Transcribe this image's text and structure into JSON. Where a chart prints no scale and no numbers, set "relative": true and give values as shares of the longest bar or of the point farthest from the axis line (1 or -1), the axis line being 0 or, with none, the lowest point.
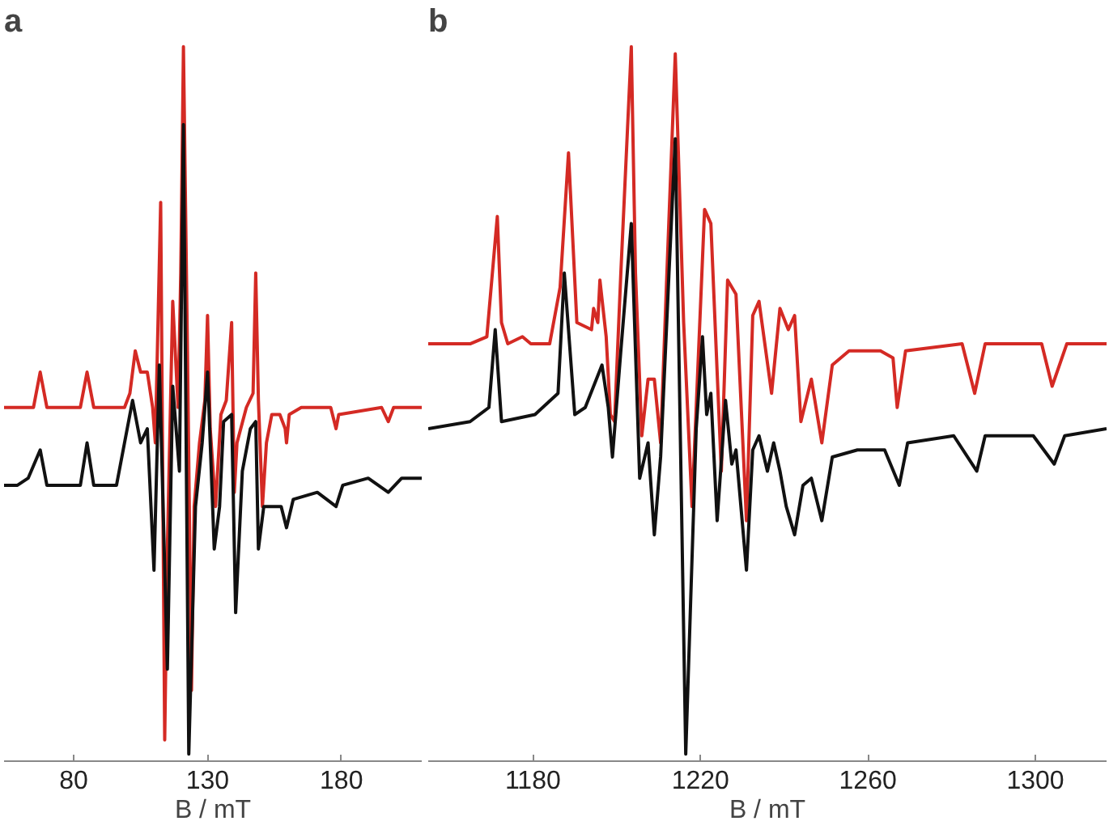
{
  "chart_data": [
    {
      "type": "line",
      "title": "a",
      "xlabel": "B / mT",
      "relative": true,
      "xlim": [
        54,
        210
      ],
      "xticks": [
        80,
        130,
        180
      ],
      "grid": false,
      "series": [
        {
          "color": "#d42a24",
          "x": [
            54,
            65,
            67.5,
            70,
            82.5,
            85,
            87.5,
            99,
            101,
            103,
            105,
            107.5,
            109.5,
            110.5,
            112.5,
            114,
            115,
            117,
            119,
            120,
            121,
            122.5,
            124,
            125,
            127,
            129,
            130,
            131,
            133,
            135,
            137,
            139,
            140,
            141,
            144.5,
            147,
            148,
            149,
            150.5,
            152,
            154,
            157,
            159,
            159.5,
            160.5,
            165,
            176,
            178,
            179,
            195,
            197.5,
            199.5,
            210
          ],
          "values": [
            0.49,
            0.49,
            0.54,
            0.49,
            0.49,
            0.54,
            0.49,
            0.49,
            0.51,
            0.57,
            0.54,
            0.54,
            0.49,
            0.44,
            0.78,
            0.02,
            0.29,
            0.64,
            0.49,
            0.68,
            1.0,
            0.57,
            0.09,
            0.35,
            0.44,
            0.5,
            0.62,
            0.46,
            0.35,
            0.48,
            0.5,
            0.61,
            0.37,
            0.44,
            0.49,
            0.51,
            0.68,
            0.5,
            0.35,
            0.44,
            0.48,
            0.48,
            0.46,
            0.44,
            0.48,
            0.49,
            0.49,
            0.46,
            0.48,
            0.49,
            0.47,
            0.49,
            0.49
          ]
        },
        {
          "color": "#111111",
          "x": [
            54,
            59,
            63,
            67.5,
            70,
            77.5,
            82.5,
            85,
            87.5,
            96,
            102,
            105,
            107.5,
            110,
            112,
            115,
            117,
            119.5,
            121,
            123,
            125.5,
            128,
            130,
            132.5,
            134.5,
            136,
            139,
            140.5,
            143,
            146,
            148,
            149,
            151,
            154,
            157.5,
            159.5,
            162,
            171,
            178,
            180.5,
            190,
            197.5,
            202.5,
            210
          ],
          "values": [
            0.38,
            0.38,
            0.39,
            0.43,
            0.38,
            0.38,
            0.38,
            0.44,
            0.38,
            0.38,
            0.5,
            0.44,
            0.46,
            0.26,
            0.55,
            0.12,
            0.52,
            0.4,
            0.89,
            0,
            0.35,
            0.44,
            0.54,
            0.29,
            0.35,
            0.47,
            0.48,
            0.2,
            0.4,
            0.46,
            0.47,
            0.29,
            0.35,
            0.35,
            0.35,
            0.32,
            0.36,
            0.37,
            0.35,
            0.38,
            0.39,
            0.37,
            0.39,
            0.39
          ]
        }
      ]
    },
    {
      "type": "line",
      "title": "b",
      "xlabel": "B / mT",
      "relative": true,
      "xlim": [
        1155,
        1317
      ],
      "xticks": [
        1180,
        1220,
        1260,
        1300
      ],
      "grid": false,
      "series": [
        {
          "color": "#d42a24",
          "x": [
            1155,
            1165,
            1169,
            1171.5,
            1172.5,
            1174,
            1177.5,
            1179.5,
            1184,
            1186.5,
            1188.5,
            1190.5,
            1194,
            1194.5,
            1195.5,
            1196,
            1197.5,
            1198.5,
            1199.5,
            1201,
            1203.5,
            1204.5,
            1206,
            1207.5,
            1209,
            1210.5,
            1212,
            1214,
            1216,
            1218,
            1221,
            1222.5,
            1225,
            1226.5,
            1228.5,
            1231,
            1232.5,
            1234,
            1237,
            1239,
            1241,
            1242.5,
            1244,
            1246.5,
            1249,
            1251.5,
            1255.5,
            1263,
            1266,
            1267,
            1269,
            1282.5,
            1285.5,
            1288,
            1301.5,
            1304,
            1307.5,
            1317
          ],
          "values": [
            0.58,
            0.58,
            0.59,
            0.76,
            0.61,
            0.58,
            0.59,
            0.58,
            0.58,
            0.66,
            0.85,
            0.61,
            0.6,
            0.63,
            0.61,
            0.67,
            0.59,
            0.48,
            0.47,
            0.68,
            1.0,
            0.68,
            0.45,
            0.53,
            0.53,
            0.44,
            0.68,
            0.99,
            0.61,
            0.35,
            0.77,
            0.75,
            0.4,
            0.67,
            0.65,
            0.33,
            0.62,
            0.64,
            0.51,
            0.63,
            0.6,
            0.62,
            0.47,
            0.53,
            0.44,
            0.55,
            0.57,
            0.57,
            0.56,
            0.49,
            0.57,
            0.58,
            0.51,
            0.58,
            0.58,
            0.52,
            0.58,
            0.58
          ]
        },
        {
          "color": "#111111",
          "x": [
            1155,
            1165,
            1169.5,
            1171,
            1172.5,
            1180.5,
            1186,
            1187.5,
            1190,
            1192.5,
            1196.5,
            1198,
            1199,
            1201,
            1203.5,
            1205.5,
            1207.5,
            1209,
            1210.5,
            1212.5,
            1214,
            1216.5,
            1219,
            1220.5,
            1221.5,
            1222.5,
            1224,
            1226,
            1227.5,
            1228.5,
            1231,
            1232.5,
            1234,
            1236,
            1237.5,
            1239,
            1240.5,
            1242.5,
            1244.5,
            1246.5,
            1249,
            1251.5,
            1257.5,
            1264,
            1267.5,
            1269.5,
            1280.5,
            1286,
            1288,
            1299.5,
            1304.5,
            1307,
            1317
          ],
          "values": [
            0.46,
            0.47,
            0.49,
            0.6,
            0.47,
            0.48,
            0.51,
            0.68,
            0.48,
            0.49,
            0.55,
            0.49,
            0.42,
            0.57,
            0.75,
            0.39,
            0.44,
            0.31,
            0.42,
            0.68,
            0.87,
            0,
            0.46,
            0.59,
            0.48,
            0.51,
            0.33,
            0.5,
            0.41,
            0.43,
            0.26,
            0.43,
            0.45,
            0.4,
            0.44,
            0.4,
            0.35,
            0.31,
            0.38,
            0.39,
            0.33,
            0.42,
            0.43,
            0.43,
            0.38,
            0.44,
            0.45,
            0.4,
            0.45,
            0.45,
            0.41,
            0.45,
            0.46
          ]
        }
      ]
    }
  ]
}
